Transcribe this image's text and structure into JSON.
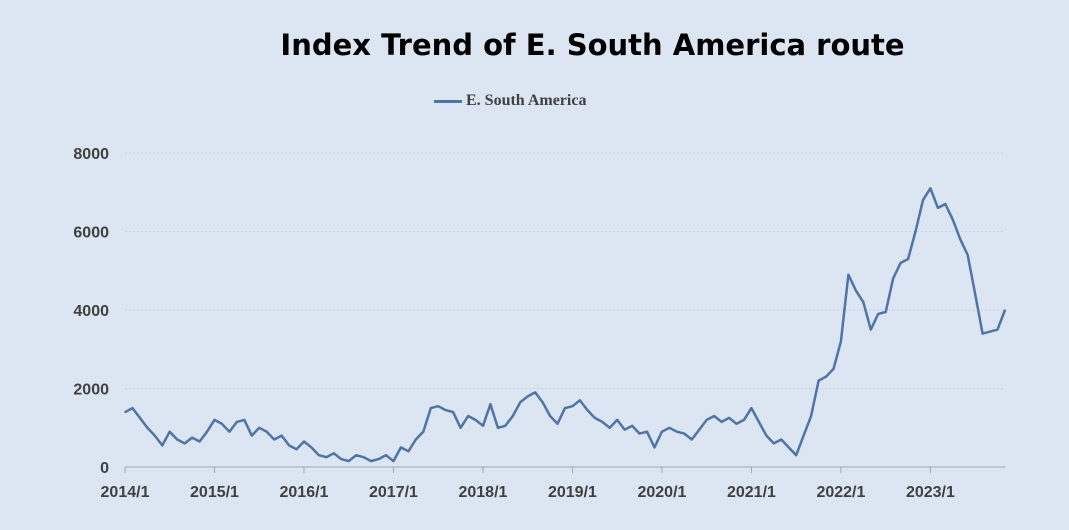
{
  "chart_data": {
    "type": "line",
    "title": "Index Trend of E. South America route",
    "xlabel": "",
    "ylabel": "",
    "ylim": [
      0,
      8000
    ],
    "xlim": [
      "2014-01",
      "2023-11"
    ],
    "grid": true,
    "legend_position": "top-center",
    "y_ticks": [
      "0",
      "2000",
      "4000",
      "6000",
      "8000"
    ],
    "x_ticks": [
      "2014/1",
      "2015/1",
      "2016/1",
      "2017/1",
      "2018/1",
      "2019/1",
      "2020/1",
      "2021/1",
      "2022/1",
      "2023/1"
    ],
    "series": [
      {
        "name": "E. South America",
        "color": "#4f74a5",
        "points": [
          [
            "2014-01",
            1400
          ],
          [
            "2014-02",
            1500
          ],
          [
            "2014-03",
            1250
          ],
          [
            "2014-04",
            1000
          ],
          [
            "2014-05",
            800
          ],
          [
            "2014-06",
            550
          ],
          [
            "2014-07",
            900
          ],
          [
            "2014-08",
            700
          ],
          [
            "2014-09",
            600
          ],
          [
            "2014-10",
            750
          ],
          [
            "2014-11",
            650
          ],
          [
            "2014-12",
            900
          ],
          [
            "2015-01",
            1200
          ],
          [
            "2015-02",
            1100
          ],
          [
            "2015-03",
            900
          ],
          [
            "2015-04",
            1150
          ],
          [
            "2015-05",
            1200
          ],
          [
            "2015-06",
            800
          ],
          [
            "2015-07",
            1000
          ],
          [
            "2015-08",
            900
          ],
          [
            "2015-09",
            700
          ],
          [
            "2015-10",
            800
          ],
          [
            "2015-11",
            550
          ],
          [
            "2015-12",
            450
          ],
          [
            "2016-01",
            650
          ],
          [
            "2016-02",
            500
          ],
          [
            "2016-03",
            300
          ],
          [
            "2016-04",
            250
          ],
          [
            "2016-05",
            350
          ],
          [
            "2016-06",
            200
          ],
          [
            "2016-07",
            150
          ],
          [
            "2016-08",
            300
          ],
          [
            "2016-09",
            250
          ],
          [
            "2016-10",
            150
          ],
          [
            "2016-11",
            200
          ],
          [
            "2016-12",
            300
          ],
          [
            "2017-01",
            150
          ],
          [
            "2017-02",
            500
          ],
          [
            "2017-03",
            400
          ],
          [
            "2017-04",
            700
          ],
          [
            "2017-05",
            900
          ],
          [
            "2017-06",
            1500
          ],
          [
            "2017-07",
            1550
          ],
          [
            "2017-08",
            1450
          ],
          [
            "2017-09",
            1400
          ],
          [
            "2017-10",
            1000
          ],
          [
            "2017-11",
            1300
          ],
          [
            "2017-12",
            1200
          ],
          [
            "2018-01",
            1050
          ],
          [
            "2018-02",
            1600
          ],
          [
            "2018-03",
            1000
          ],
          [
            "2018-04",
            1050
          ],
          [
            "2018-05",
            1300
          ],
          [
            "2018-06",
            1650
          ],
          [
            "2018-07",
            1800
          ],
          [
            "2018-08",
            1900
          ],
          [
            "2018-09",
            1650
          ],
          [
            "2018-10",
            1300
          ],
          [
            "2018-11",
            1100
          ],
          [
            "2018-12",
            1500
          ],
          [
            "2019-01",
            1550
          ],
          [
            "2019-02",
            1700
          ],
          [
            "2019-03",
            1450
          ],
          [
            "2019-04",
            1250
          ],
          [
            "2019-05",
            1150
          ],
          [
            "2019-06",
            1000
          ],
          [
            "2019-07",
            1200
          ],
          [
            "2019-08",
            950
          ],
          [
            "2019-09",
            1050
          ],
          [
            "2019-10",
            850
          ],
          [
            "2019-11",
            900
          ],
          [
            "2019-12",
            500
          ],
          [
            "2020-01",
            900
          ],
          [
            "2020-02",
            1000
          ],
          [
            "2020-03",
            900
          ],
          [
            "2020-04",
            850
          ],
          [
            "2020-05",
            700
          ],
          [
            "2020-06",
            950
          ],
          [
            "2020-07",
            1200
          ],
          [
            "2020-08",
            1300
          ],
          [
            "2020-09",
            1150
          ],
          [
            "2020-10",
            1250
          ],
          [
            "2020-11",
            1100
          ],
          [
            "2020-12",
            1200
          ],
          [
            "2021-01",
            1500
          ],
          [
            "2021-02",
            1150
          ],
          [
            "2021-03",
            800
          ],
          [
            "2021-04",
            600
          ],
          [
            "2021-05",
            700
          ],
          [
            "2021-06",
            500
          ],
          [
            "2021-07",
            300
          ],
          [
            "2021-08",
            800
          ],
          [
            "2021-09",
            1300
          ],
          [
            "2021-10",
            2200
          ],
          [
            "2021-11",
            2300
          ],
          [
            "2021-12",
            2500
          ],
          [
            "2022-01",
            3200
          ],
          [
            "2022-02",
            4900
          ],
          [
            "2022-03",
            4500
          ],
          [
            "2022-04",
            4200
          ],
          [
            "2022-05",
            3500
          ],
          [
            "2022-06",
            3900
          ],
          [
            "2022-07",
            3950
          ],
          [
            "2022-08",
            4800
          ],
          [
            "2022-09",
            5200
          ],
          [
            "2022-10",
            5300
          ],
          [
            "2022-11",
            6000
          ],
          [
            "2022-12",
            6800
          ],
          [
            "2023-01",
            7100
          ],
          [
            "2023-02",
            6600
          ],
          [
            "2023-03",
            6700
          ],
          [
            "2023-04",
            6300
          ],
          [
            "2023-05",
            5800
          ],
          [
            "2023-06",
            5400
          ],
          [
            "2023-07",
            4400
          ],
          [
            "2023-08",
            3400
          ],
          [
            "2023-09",
            3450
          ],
          [
            "2023-10",
            3500
          ],
          [
            "2023-11",
            4000
          ]
        ]
      }
    ]
  }
}
